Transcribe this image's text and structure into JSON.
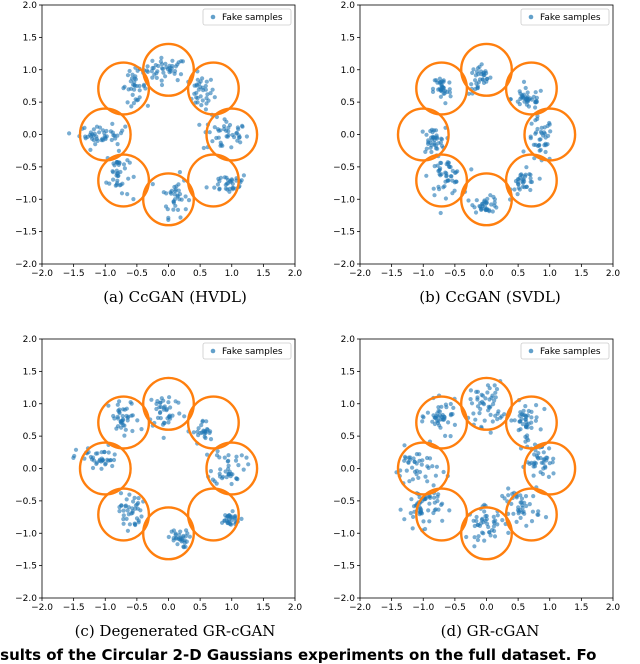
{
  "colors": {
    "points": "#1f77b4",
    "circles": "#ff7f0e",
    "frame": "#000000"
  },
  "chart_data": [
    {
      "type": "scatter",
      "caption": "(a) CcGAN (HVDL)",
      "legend": "Fake samples",
      "legend_position": "top-right",
      "xlim": [
        -2.0,
        2.0
      ],
      "ylim": [
        -2.0,
        2.0
      ],
      "xticks": [
        "−2.0",
        "−1.5",
        "−1.0",
        "−0.5",
        "0.0",
        "0.5",
        "1.0",
        "1.5",
        "2.0"
      ],
      "yticks": [
        "−2.0",
        "−1.5",
        "−1.0",
        "−0.5",
        "0.0",
        "0.5",
        "1.0",
        "1.5",
        "2.0"
      ],
      "circle_radius": 0.4,
      "circle_centers": [
        [
          0,
          1
        ],
        [
          0.71,
          0.71
        ],
        [
          1,
          0
        ],
        [
          0.71,
          -0.71
        ],
        [
          0,
          -1
        ],
        [
          -0.71,
          -0.71
        ],
        [
          -1,
          0
        ],
        [
          -0.71,
          0.71
        ]
      ],
      "clusters": [
        {
          "cx": -0.05,
          "cy": 1.0,
          "sx": 0.17,
          "sy": 0.09,
          "n": 45
        },
        {
          "cx": 0.52,
          "cy": 0.65,
          "sx": 0.1,
          "sy": 0.13,
          "n": 35
        },
        {
          "cx": 0.9,
          "cy": 0.0,
          "sx": 0.18,
          "sy": 0.14,
          "n": 45
        },
        {
          "cx": 0.95,
          "cy": -0.75,
          "sx": 0.16,
          "sy": 0.08,
          "n": 35
        },
        {
          "cx": 0.1,
          "cy": -0.95,
          "sx": 0.1,
          "sy": 0.16,
          "n": 35
        },
        {
          "cx": -0.8,
          "cy": -0.6,
          "sx": 0.09,
          "sy": 0.2,
          "n": 40
        },
        {
          "cx": -1.05,
          "cy": 0.0,
          "sx": 0.18,
          "sy": 0.07,
          "n": 45
        },
        {
          "cx": -0.55,
          "cy": 0.75,
          "sx": 0.1,
          "sy": 0.12,
          "n": 35
        }
      ]
    },
    {
      "type": "scatter",
      "caption": "(b) CcGAN (SVDL)",
      "legend": "Fake samples",
      "legend_position": "top-right",
      "xlim": [
        -2.0,
        2.0
      ],
      "ylim": [
        -2.0,
        2.0
      ],
      "xticks": [
        "−2.0",
        "−1.5",
        "−1.0",
        "−0.5",
        "0.0",
        "0.5",
        "1.0",
        "1.5",
        "2.0"
      ],
      "yticks": [
        "−2.0",
        "−1.5",
        "−1.0",
        "−0.5",
        "0.0",
        "0.5",
        "1.0",
        "1.5",
        "2.0"
      ],
      "circle_radius": 0.4,
      "circle_centers": [
        [
          0,
          1
        ],
        [
          0.71,
          0.71
        ],
        [
          1,
          0
        ],
        [
          0.71,
          -0.71
        ],
        [
          0,
          -1
        ],
        [
          -0.71,
          -0.71
        ],
        [
          -1,
          0
        ],
        [
          -0.71,
          0.71
        ]
      ],
      "clusters": [
        {
          "cx": -0.1,
          "cy": 0.85,
          "sx": 0.09,
          "sy": 0.12,
          "n": 35
        },
        {
          "cx": 0.65,
          "cy": 0.55,
          "sx": 0.13,
          "sy": 0.08,
          "n": 40
        },
        {
          "cx": 0.85,
          "cy": -0.1,
          "sx": 0.1,
          "sy": 0.18,
          "n": 40
        },
        {
          "cx": 0.6,
          "cy": -0.75,
          "sx": 0.1,
          "sy": 0.1,
          "n": 35
        },
        {
          "cx": 0.0,
          "cy": -1.08,
          "sx": 0.1,
          "sy": 0.06,
          "n": 35
        },
        {
          "cx": -0.65,
          "cy": -0.65,
          "sx": 0.13,
          "sy": 0.14,
          "n": 50
        },
        {
          "cx": -0.85,
          "cy": -0.1,
          "sx": 0.1,
          "sy": 0.1,
          "n": 40
        },
        {
          "cx": -0.7,
          "cy": 0.7,
          "sx": 0.07,
          "sy": 0.12,
          "n": 35
        }
      ]
    },
    {
      "type": "scatter",
      "caption": "(c) Degenerated GR-cGAN",
      "legend": "Fake samples",
      "legend_position": "top-right",
      "xlim": [
        -2.0,
        2.0
      ],
      "ylim": [
        -2.0,
        2.0
      ],
      "xticks": [
        "−2.0",
        "−1.5",
        "−1.0",
        "−0.5",
        "0.0",
        "0.5",
        "1.0",
        "1.5",
        "2.0"
      ],
      "yticks": [
        "−2.0",
        "−1.5",
        "−1.0",
        "−0.5",
        "0.0",
        "0.5",
        "1.0",
        "1.5",
        "2.0"
      ],
      "circle_radius": 0.4,
      "circle_centers": [
        [
          0,
          1
        ],
        [
          0.71,
          0.71
        ],
        [
          1,
          0
        ],
        [
          0.71,
          -0.71
        ],
        [
          0,
          -1
        ],
        [
          -0.71,
          -0.71
        ],
        [
          -1,
          0
        ],
        [
          -0.71,
          0.71
        ]
      ],
      "clusters": [
        {
          "cx": -0.05,
          "cy": 0.9,
          "sx": 0.14,
          "sy": 0.15,
          "n": 40
        },
        {
          "cx": 0.55,
          "cy": 0.55,
          "sx": 0.08,
          "sy": 0.1,
          "n": 25
        },
        {
          "cx": 0.95,
          "cy": 0.05,
          "sx": 0.13,
          "sy": 0.15,
          "n": 40
        },
        {
          "cx": 0.95,
          "cy": -0.8,
          "sx": 0.1,
          "sy": 0.06,
          "n": 30
        },
        {
          "cx": 0.15,
          "cy": -1.08,
          "sx": 0.08,
          "sy": 0.07,
          "n": 30
        },
        {
          "cx": -0.6,
          "cy": -0.65,
          "sx": 0.09,
          "sy": 0.14,
          "n": 40
        },
        {
          "cx": -1.1,
          "cy": 0.15,
          "sx": 0.18,
          "sy": 0.1,
          "n": 40
        },
        {
          "cx": -0.7,
          "cy": 0.75,
          "sx": 0.12,
          "sy": 0.15,
          "n": 40
        }
      ]
    },
    {
      "type": "scatter",
      "caption": "(d) GR-cGAN",
      "legend": "Fake samples",
      "legend_position": "top-right",
      "xlim": [
        -2.0,
        2.0
      ],
      "ylim": [
        -2.0,
        2.0
      ],
      "xticks": [
        "−2.0",
        "−1.5",
        "−1.0",
        "−0.5",
        "0.0",
        "0.5",
        "1.0",
        "1.5",
        "2.0"
      ],
      "yticks": [
        "−2.0",
        "−1.5",
        "−1.0",
        "−0.5",
        "0.0",
        "0.5",
        "1.0",
        "1.5",
        "2.0"
      ],
      "circle_radius": 0.4,
      "circle_centers": [
        [
          0,
          1
        ],
        [
          0.71,
          0.71
        ],
        [
          1,
          0
        ],
        [
          0.71,
          -0.71
        ],
        [
          0,
          -1
        ],
        [
          -0.71,
          -0.71
        ],
        [
          -1,
          0
        ],
        [
          -0.71,
          0.71
        ]
      ],
      "clusters": [
        {
          "cx": 0.0,
          "cy": 1.0,
          "sx": 0.13,
          "sy": 0.17,
          "n": 50
        },
        {
          "cx": 0.6,
          "cy": 0.75,
          "sx": 0.12,
          "sy": 0.14,
          "n": 45
        },
        {
          "cx": 0.85,
          "cy": 0.1,
          "sx": 0.12,
          "sy": 0.15,
          "n": 45
        },
        {
          "cx": 0.55,
          "cy": -0.6,
          "sx": 0.15,
          "sy": 0.14,
          "n": 45
        },
        {
          "cx": 0.0,
          "cy": -0.85,
          "sx": 0.15,
          "sy": 0.12,
          "n": 45
        },
        {
          "cx": -1.0,
          "cy": -0.6,
          "sx": 0.15,
          "sy": 0.15,
          "n": 55
        },
        {
          "cx": -1.1,
          "cy": 0.0,
          "sx": 0.18,
          "sy": 0.16,
          "n": 45
        },
        {
          "cx": -0.7,
          "cy": 0.8,
          "sx": 0.12,
          "sy": 0.12,
          "n": 45
        }
      ]
    }
  ],
  "bottom_caption": "esults of the Circular 2-D Gaussians experiments on the full dataset. Fo"
}
